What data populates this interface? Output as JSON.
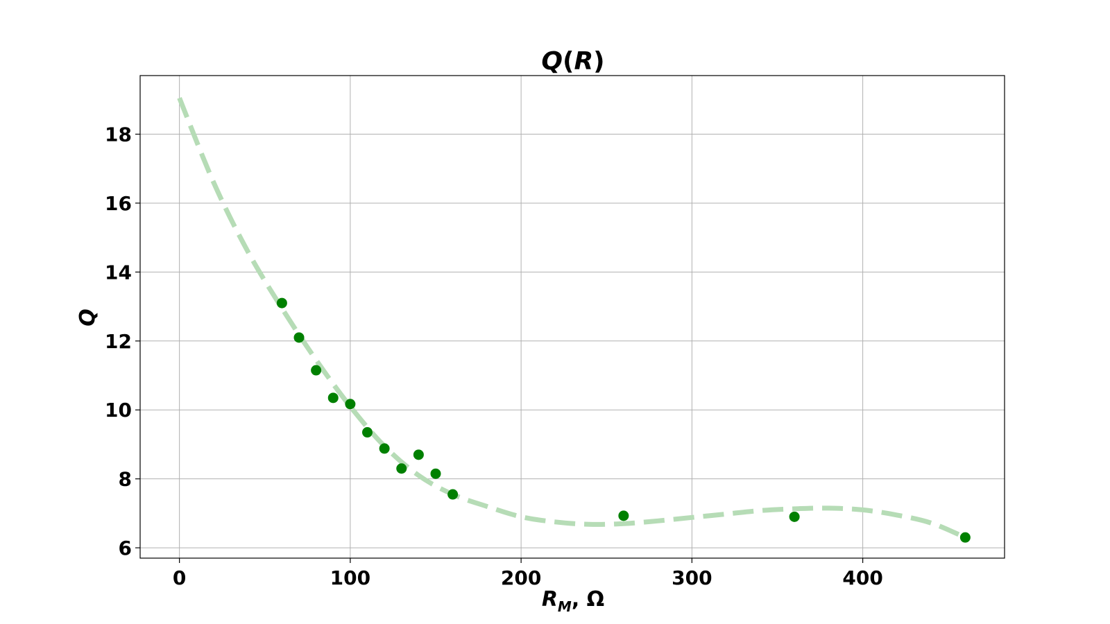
{
  "chart_data": {
    "type": "scatter",
    "title_main": "Q",
    "title_paren_open": "(",
    "title_var": "R",
    "title_paren_close": ")",
    "xlabel_main": "R",
    "xlabel_sub": "M",
    "xlabel_unit": ", Ω",
    "ylabel": "Q",
    "xlim": [
      -23,
      483
    ],
    "ylim": [
      5.7,
      19.7
    ],
    "x_ticks": [
      0,
      100,
      200,
      300,
      400
    ],
    "y_ticks": [
      6,
      8,
      10,
      12,
      14,
      16,
      18
    ],
    "grid": true,
    "series": [
      {
        "kind": "points",
        "color": "#008000",
        "x": [
          60,
          70,
          80,
          90,
          100,
          110,
          120,
          130,
          140,
          150,
          160,
          260,
          360,
          460
        ],
        "y": [
          13.1,
          12.1,
          11.15,
          10.35,
          10.17,
          9.35,
          8.88,
          8.3,
          8.7,
          8.15,
          7.55,
          6.93,
          6.9,
          6.3
        ]
      },
      {
        "kind": "fit-curve",
        "color": "#b6dcb6",
        "style": "dashed",
        "x": [
          0,
          20,
          40,
          60,
          80,
          100,
          120,
          140,
          160,
          180,
          200,
          220,
          240,
          260,
          280,
          300,
          320,
          340,
          360,
          380,
          400,
          420,
          440,
          460
        ],
        "y": [
          19.05,
          16.6,
          14.6,
          12.95,
          11.45,
          10.1,
          8.95,
          8.1,
          7.55,
          7.2,
          6.9,
          6.75,
          6.68,
          6.7,
          6.78,
          6.88,
          6.98,
          7.08,
          7.13,
          7.15,
          7.1,
          6.95,
          6.72,
          6.3
        ]
      }
    ]
  }
}
